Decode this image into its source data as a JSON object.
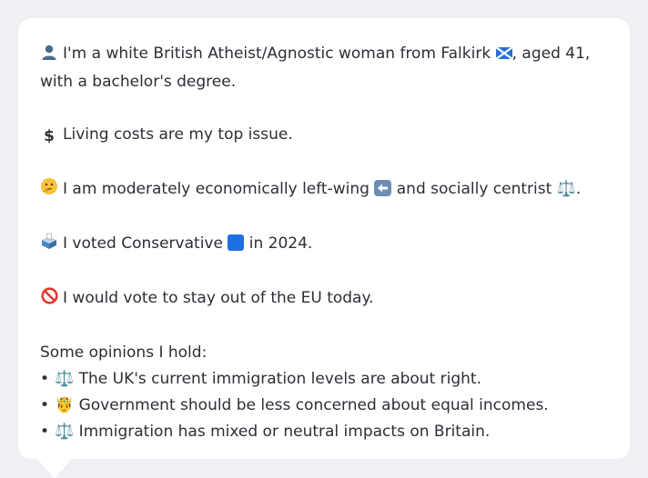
{
  "profile": {
    "line1": {
      "icon": "person-silhouette-icon",
      "text_a": "I'm a white British Atheist/Agnostic woman from Falkirk ",
      "flag_icon": "scotland-flag-icon",
      "text_b": ", aged 41, with a bachelor's degree."
    },
    "line2": {
      "icon": "dollar-sign-icon",
      "text": "Living costs are my top issue."
    },
    "line3": {
      "icon": "thinking-face-icon",
      "text_a": "I am moderately economically left-wing ",
      "arrow_icon": "left-arrow-icon",
      "text_b": " and socially centrist ",
      "scale_icon": "balance-scale-icon",
      "text_c": "."
    },
    "line4": {
      "icon": "ballot-box-icon",
      "text_a": "I voted Conservative ",
      "square_icon": "blue-square-icon",
      "text_b": " in 2024."
    },
    "line5": {
      "icon": "prohibited-icon",
      "text": "I would vote to stay out of the EU today."
    },
    "opinions_heading": "Some opinions I hold:",
    "opinions": [
      {
        "bullet": "•",
        "icon": "balance-scale-icon",
        "glyph": "⚖️",
        "text": "The UK's current immigration levels are about right."
      },
      {
        "bullet": "•",
        "icon": "person-with-crown-icon",
        "glyph": "🤴",
        "text": "Government should be less concerned about equal incomes."
      },
      {
        "bullet": "•",
        "icon": "balance-scale-icon",
        "glyph": "⚖️",
        "text": "Immigration has mixed or neutral impacts on Britain."
      }
    ]
  },
  "colors": {
    "page_background": "#eef0f3",
    "bubble_background": "#ffffff",
    "text": "#2b2f36",
    "conservative_blue": "#1e6fe0",
    "flag_blue": "#2a6fd6",
    "arrow_box": "#6d8db3"
  }
}
